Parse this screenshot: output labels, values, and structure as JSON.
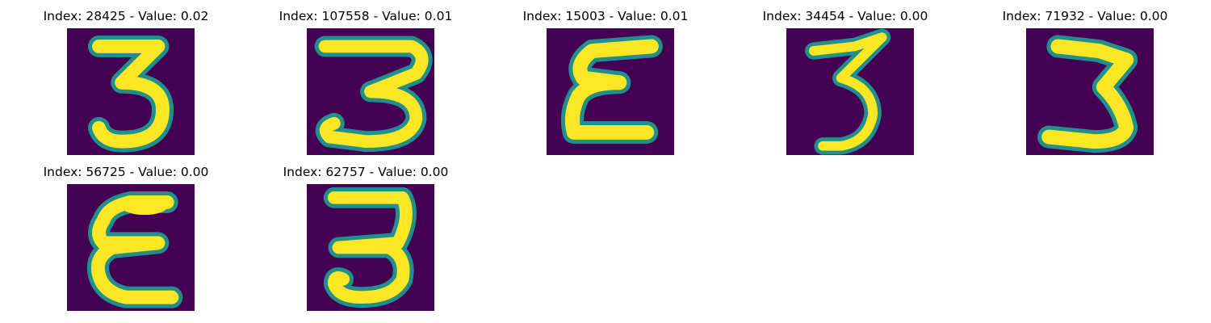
{
  "figure": {
    "colors": {
      "background": "#440154",
      "stroke_core": "#fde725",
      "stroke_edge": "#21908d"
    },
    "panels": [
      {
        "title": "Index: 28425 - Value: 0.02",
        "glyph": "digit-3"
      },
      {
        "title": "Index: 107558 - Value: 0.01",
        "glyph": "digit-3"
      },
      {
        "title": "Index: 15003 - Value: 0.01",
        "glyph": "epsilon"
      },
      {
        "title": "Index: 34454 - Value: 0.00",
        "glyph": "digit-3"
      },
      {
        "title": "Index: 71932 - Value: 0.00",
        "glyph": "digit-3"
      },
      {
        "title": "Index: 56725 - Value: 0.00",
        "glyph": "epsilon"
      },
      {
        "title": "Index: 62757 - Value: 0.00",
        "glyph": "digit-3"
      }
    ]
  }
}
